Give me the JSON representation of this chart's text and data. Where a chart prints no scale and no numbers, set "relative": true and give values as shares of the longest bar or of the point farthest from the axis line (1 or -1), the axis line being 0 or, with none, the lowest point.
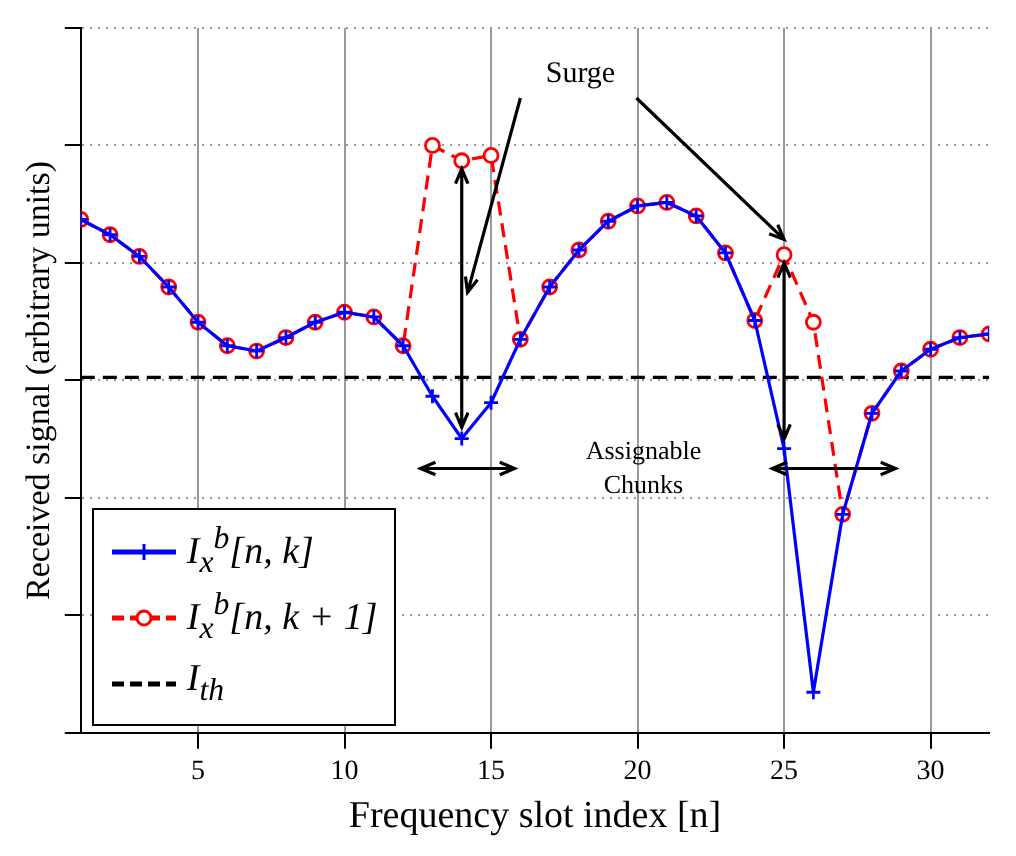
{
  "chart_data": {
    "type": "line",
    "xlabel": "Frequency slot index [n]",
    "ylabel": "Received signal (arbitrary units)",
    "relative": true,
    "x": [
      1,
      2,
      3,
      4,
      5,
      6,
      7,
      8,
      9,
      10,
      11,
      12,
      13,
      14,
      15,
      16,
      17,
      18,
      19,
      20,
      21,
      22,
      23,
      24,
      25,
      26,
      27,
      28,
      29,
      30,
      31,
      32
    ],
    "xlim": [
      1,
      32
    ],
    "xticks": [
      5,
      10,
      15,
      20,
      25,
      30
    ],
    "grid": true,
    "legend": "bottom left",
    "series": [
      {
        "name": "I$_{x}$$^{b}$[n, k]",
        "color": "#0000ff",
        "marker": "cross",
        "line_style": "solid",
        "values": [
          0.874,
          0.848,
          0.811,
          0.759,
          0.699,
          0.659,
          0.65,
          0.673,
          0.699,
          0.716,
          0.708,
          0.659,
          0.573,
          0.501,
          0.562,
          0.67,
          0.759,
          0.822,
          0.871,
          0.897,
          0.903,
          0.88,
          0.817,
          0.702,
          0.484,
          0.069,
          0.372,
          0.544,
          0.616,
          0.653,
          0.673,
          0.679
        ]
      },
      {
        "name": "I$_{x}$$^{b}$[n, k + 1]",
        "color": "#ff0000",
        "marker": "circle",
        "line_style": "dashed",
        "values": [
          0.874,
          0.848,
          0.811,
          0.759,
          0.699,
          0.659,
          0.65,
          0.673,
          0.699,
          0.716,
          0.708,
          0.659,
          1.0,
          0.974,
          0.983,
          0.67,
          0.759,
          0.822,
          0.871,
          0.897,
          0.903,
          0.88,
          0.817,
          0.702,
          0.814,
          0.699,
          0.372,
          0.544,
          0.616,
          0.653,
          0.673,
          0.679
        ]
      },
      {
        "name": "I$_{th}$",
        "color": "#000000",
        "marker": "none",
        "line_style": "dashed",
        "x": [
          1,
          32
        ],
        "values": [
          0.605,
          0.605
        ]
      }
    ],
    "annotations": [
      "Surge",
      "Assignable Chunks"
    ]
  }
}
